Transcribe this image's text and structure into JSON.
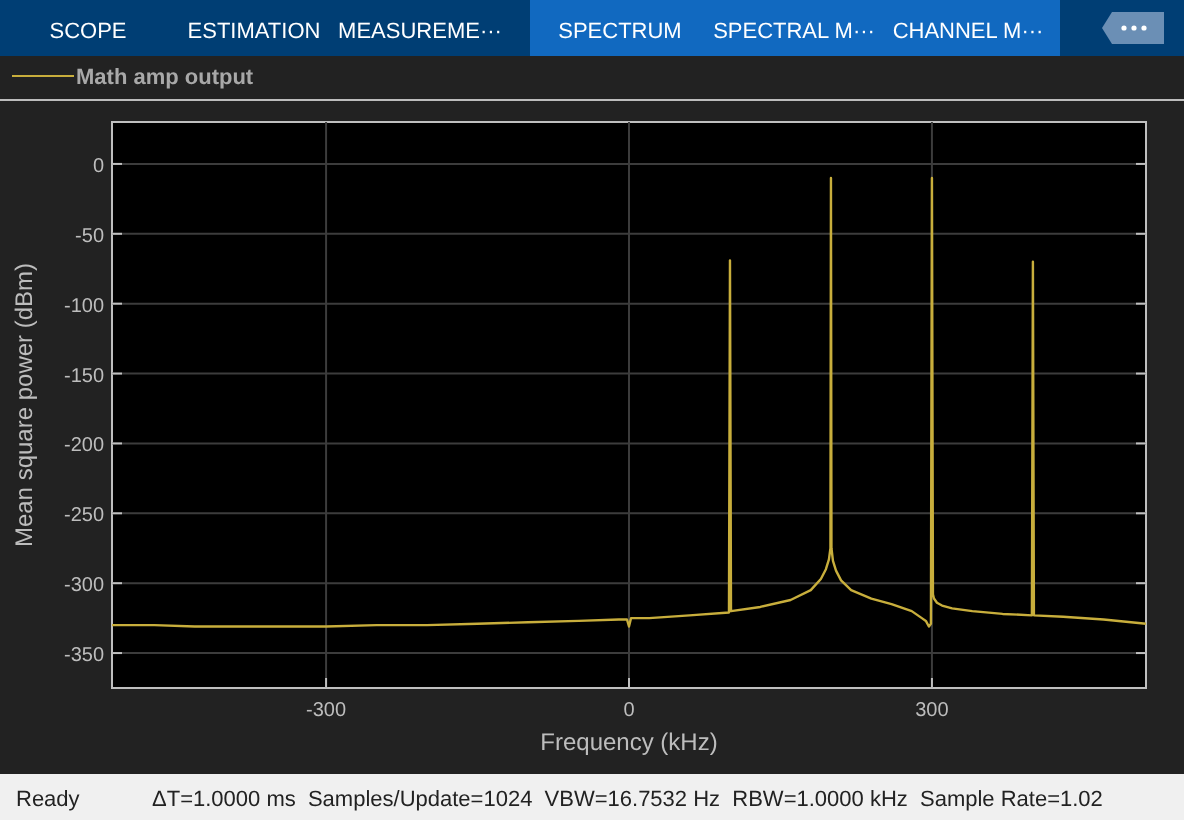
{
  "chart_data": {
    "type": "line",
    "xlabel": "Frequency (kHz)",
    "ylabel": "Mean square power (dBm)",
    "annotations": [
      "SCOPE",
      "ESTIMATION",
      "MEASUREME···",
      "SPECTRUM",
      "SPECTRAL M···",
      "CHANNEL M···",
      "Ready",
      "ΔT=1.0000 ms  Samples/Update=1024  VBW=16.7532 Hz  RBW=1.0000 kHz  Sample Rate=1.02"
    ],
    "xlim": [
      -512,
      512
    ],
    "ylim": [
      -375,
      30
    ],
    "xticks": [
      -300,
      0,
      300
    ],
    "yticks": [
      -350,
      -300,
      -250,
      -200,
      -150,
      -100,
      -50,
      0
    ],
    "grid": true,
    "legend": "top left",
    "line_style": "solid",
    "marker": "none",
    "series": [
      {
        "name": "Math amp output",
        "color": "#c8ae3c",
        "x": [
          -512,
          -470,
          -430,
          -400,
          -360,
          -300,
          -250,
          -200,
          -150,
          -100,
          -50,
          -10,
          -2,
          0,
          2,
          20,
          60,
          99,
          100,
          101,
          130,
          160,
          180,
          190,
          195,
          198,
          199.5,
          200,
          200.5,
          202,
          205,
          210,
          220,
          240,
          260,
          280,
          290,
          294,
          297,
          299,
          300,
          301,
          302,
          305,
          310,
          320,
          340,
          370,
          399,
          400,
          401,
          430,
          470,
          512
        ],
        "values": [
          -330,
          -330,
          -331,
          -331,
          -331,
          -331,
          -330,
          -330,
          -329,
          -328,
          -327,
          -326,
          -326,
          -331,
          -325,
          -325,
          -323,
          -321,
          -69,
          -320,
          -317,
          -312,
          -305,
          -297,
          -290,
          -283,
          -275,
          -10,
          -275,
          -284,
          -291,
          -298,
          -305,
          -311,
          -315,
          -320,
          -325,
          -327,
          -331,
          -329,
          -10,
          -308,
          -311,
          -314,
          -316,
          -318,
          -320,
          -322,
          -323,
          -70,
          -323,
          -324,
          -326,
          -329
        ]
      }
    ]
  }
}
